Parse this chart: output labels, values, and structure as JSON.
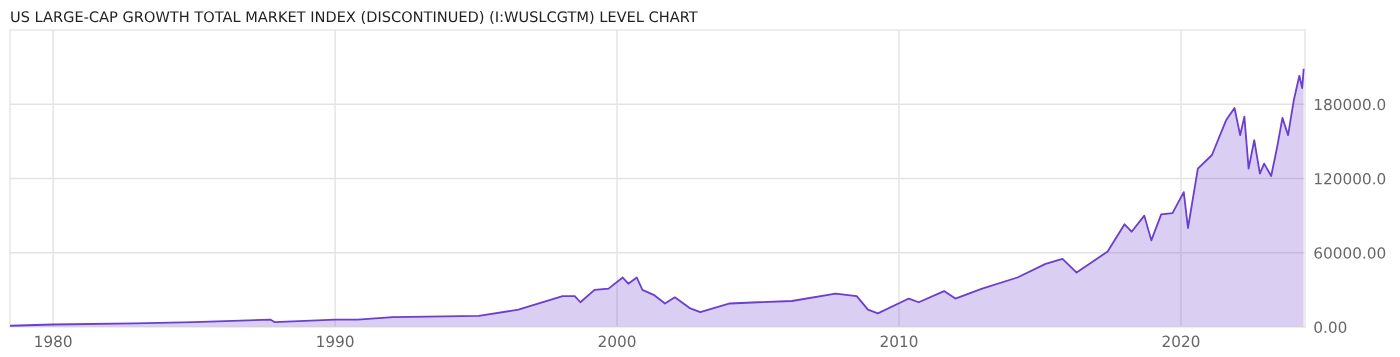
{
  "chart_data": {
    "type": "area",
    "title": "US LARGE-CAP GROWTH TOTAL MARKET INDEX (DISCONTINUED) (I:WUSLCGTM) LEVEL CHART",
    "x": [
      1978.5,
      1980,
      1982.9,
      1985,
      1987.7,
      1987.85,
      1990,
      1990.8,
      1992.05,
      1995.1,
      1996.5,
      1998.07,
      1998.5,
      1998.7,
      1999.2,
      1999.7,
      2000.2,
      2000.4,
      2000.7,
      2000.9,
      2001.3,
      2001.7,
      2002.05,
      2002.6,
      2002.95,
      2004,
      2005,
      2006.2,
      2007.75,
      2008.5,
      2008.9,
      2009.25,
      2010.35,
      2010.7,
      2011.6,
      2012.0,
      2012.95,
      2014.2,
      2015.2,
      2015.8,
      2016.3,
      2017.4,
      2018.0,
      2018.25,
      2018.7,
      2018.95,
      2019.3,
      2019.7,
      2020.1,
      2020.25,
      2020.6,
      2021.1,
      2021.6,
      2021.9,
      2022.1,
      2022.25,
      2022.4,
      2022.6,
      2022.8,
      2022.95,
      2023.2,
      2023.4,
      2023.6,
      2023.8,
      2024.0,
      2024.2,
      2024.3,
      2024.35
    ],
    "series": [
      {
        "color": "#6a3fcf",
        "values": [
          1000,
          2000,
          3000,
          4000,
          6000,
          4000,
          6000,
          6000,
          8000,
          9000,
          14000,
          25000,
          25000,
          20000,
          30000,
          31000,
          40000,
          35000,
          40000,
          30000,
          26000,
          19000,
          24000,
          15000,
          12000,
          19000,
          20000,
          21000,
          27000,
          25000,
          14000,
          11000,
          23000,
          20000,
          29000,
          23000,
          31000,
          40000,
          51000,
          55000,
          44000,
          61000,
          83000,
          77000,
          90000,
          70000,
          91000,
          92000,
          109000,
          80000,
          128000,
          139000,
          167000,
          177000,
          155000,
          170000,
          128000,
          151000,
          124000,
          132000,
          122000,
          144000,
          169000,
          155000,
          183000,
          203000,
          193000,
          208000
        ]
      }
    ],
    "xlim": [
      1978.47,
      2024.4
    ],
    "ylim": [
      0,
      240000
    ],
    "xticks": [
      1980,
      1990,
      2000,
      2010,
      2020
    ],
    "yticks": [
      {
        "value": 0,
        "label": "0.00"
      },
      {
        "value": 60000,
        "label": "60000.00"
      },
      {
        "value": 120000,
        "label": "120000.0"
      },
      {
        "value": 180000,
        "label": "180000.0"
      }
    ],
    "grid": true,
    "legend": false
  }
}
